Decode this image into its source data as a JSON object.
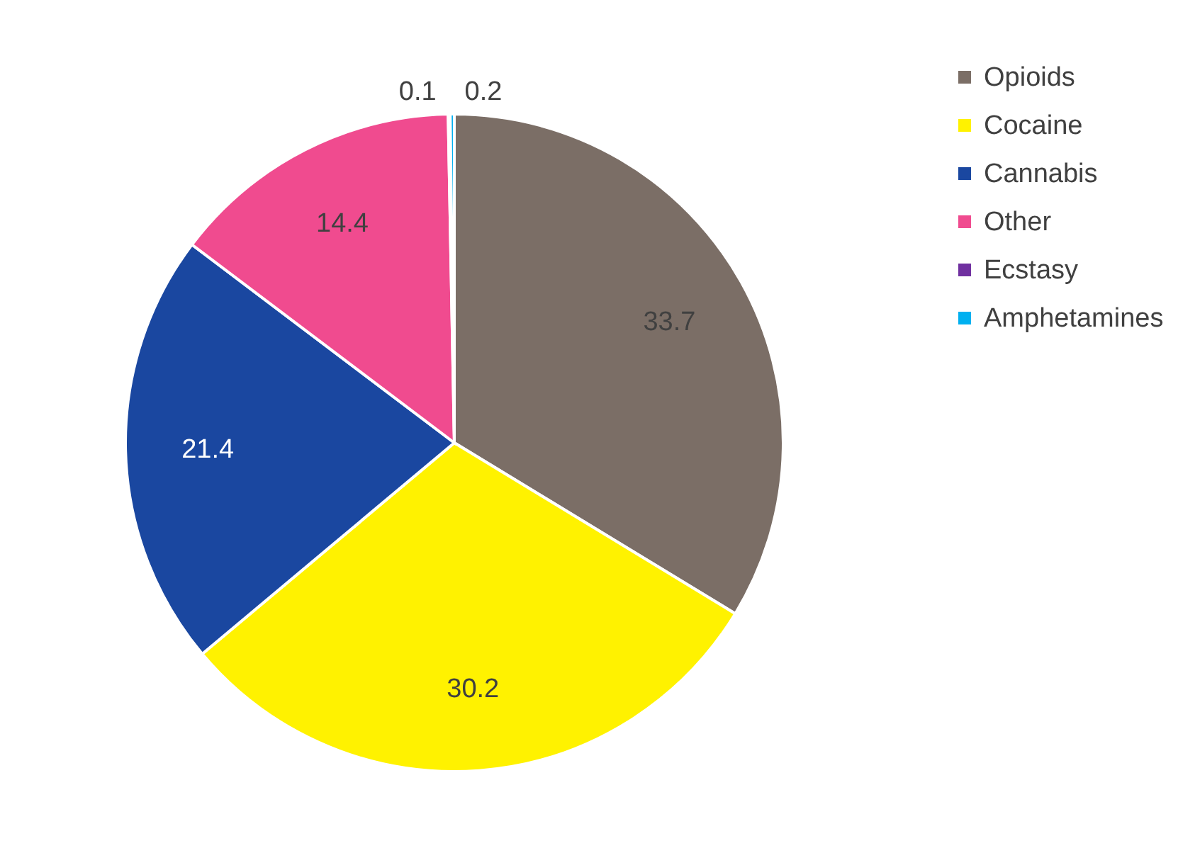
{
  "chart_data": {
    "type": "pie",
    "categories": [
      "Opioids",
      "Cocaine",
      "Cannabis",
      "Other",
      "Ecstasy",
      "Amphetamines"
    ],
    "values": [
      33.7,
      30.2,
      21.4,
      14.4,
      0.1,
      0.2
    ],
    "colors": [
      "#7b6e66",
      "#fff200",
      "#1a47a0",
      "#f04b8f",
      "#7030a0",
      "#00b0f0"
    ],
    "data_labels": true,
    "legend": "right"
  }
}
